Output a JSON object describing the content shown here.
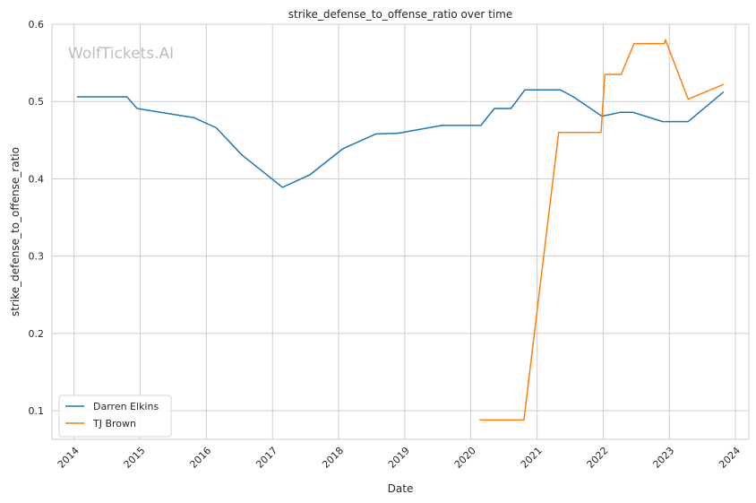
{
  "watermark": "WolfTickets.AI",
  "chart_data": {
    "type": "line",
    "title": "strike_defense_to_offense_ratio over time",
    "xlabel": "Date",
    "ylabel": "strike_defense_to_offense_ratio",
    "x_type": "date",
    "xlim": [
      "2013-09-01",
      "2024-03-15"
    ],
    "ylim": [
      0.063,
      0.6
    ],
    "x_ticks": [
      "2014",
      "2015",
      "2016",
      "2017",
      "2018",
      "2019",
      "2020",
      "2021",
      "2022",
      "2023",
      "2024"
    ],
    "y_ticks": [
      "0.1",
      "0.2",
      "0.3",
      "0.4",
      "0.5",
      "0.6"
    ],
    "grid": true,
    "legend_position": "lower-left",
    "series": [
      {
        "name": "Darren Elkins",
        "color": "#1f77b4",
        "points": [
          [
            "2014-01-20",
            0.506
          ],
          [
            "2014-10-20",
            0.506
          ],
          [
            "2014-12-15",
            0.491
          ],
          [
            "2015-10-25",
            0.479
          ],
          [
            "2016-02-25",
            0.466
          ],
          [
            "2016-07-15",
            0.431
          ],
          [
            "2017-02-25",
            0.389
          ],
          [
            "2017-07-25",
            0.405
          ],
          [
            "2018-01-25",
            0.439
          ],
          [
            "2018-07-25",
            0.458
          ],
          [
            "2018-11-25",
            0.459
          ],
          [
            "2019-07-25",
            0.469
          ],
          [
            "2020-02-25",
            0.469
          ],
          [
            "2020-05-10",
            0.491
          ],
          [
            "2020-08-10",
            0.491
          ],
          [
            "2020-10-25",
            0.515
          ],
          [
            "2021-05-10",
            0.515
          ],
          [
            "2021-07-20",
            0.506
          ],
          [
            "2021-12-25",
            0.481
          ],
          [
            "2022-04-05",
            0.486
          ],
          [
            "2022-06-15",
            0.486
          ],
          [
            "2022-11-25",
            0.474
          ],
          [
            "2023-04-15",
            0.474
          ],
          [
            "2023-10-25",
            0.512
          ]
        ]
      },
      {
        "name": "TJ Brown",
        "color": "#ff7f0e",
        "points": [
          [
            "2020-02-20",
            0.088
          ],
          [
            "2020-10-20",
            0.088
          ],
          [
            "2021-04-30",
            0.46
          ],
          [
            "2021-12-20",
            0.46
          ],
          [
            "2022-01-10",
            0.535
          ],
          [
            "2022-04-10",
            0.535
          ],
          [
            "2022-06-20",
            0.575
          ],
          [
            "2022-12-05",
            0.575
          ],
          [
            "2022-12-10",
            0.58
          ],
          [
            "2023-04-15",
            0.503
          ],
          [
            "2023-10-25",
            0.522
          ]
        ]
      }
    ]
  }
}
